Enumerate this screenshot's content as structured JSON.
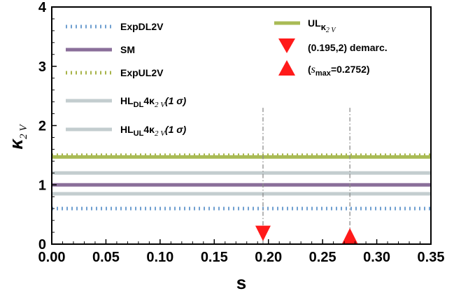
{
  "chart_data": {
    "type": "line",
    "xlabel": "s",
    "ylabel_main": "κ",
    "ylabel_sub": "2 V",
    "xlim": [
      0,
      0.35
    ],
    "ylim": [
      0,
      4
    ],
    "x_ticks": [
      "0.00",
      "0.05",
      "0.10",
      "0.15",
      "0.20",
      "0.25",
      "0.30",
      "0.35"
    ],
    "y_ticks": [
      "0",
      "1",
      "2",
      "3",
      "4"
    ],
    "grid": false,
    "legend_placement": "top",
    "series": [
      {
        "name": "ExpDL2V",
        "y": 0.6,
        "style": "dotted",
        "color": "#6f9fd0"
      },
      {
        "name": "SM",
        "y": 1.0,
        "style": "solid",
        "color": "#8a6f9a"
      },
      {
        "name": "ExpUL2V",
        "y": 1.5,
        "style": "dotted",
        "color": "#a8b44a"
      },
      {
        "name": "HL_DL 4κ_2V (1σ)",
        "y": 0.85,
        "style": "solid",
        "color": "#c3cdcf"
      },
      {
        "name": "HL_UL 4κ_2V (1σ)",
        "y": 1.2,
        "style": "solid",
        "color": "#c3cdcf"
      },
      {
        "name": "UL κ_2V",
        "y": 1.47,
        "style": "solid",
        "color": "#a9bb55"
      }
    ],
    "markers": [
      {
        "name": "(0.195,2) demarc.",
        "x": 0.195,
        "y": 0.17,
        "shape": "triangle-down",
        "guide_top": 2.3,
        "color": "#ff1a1a"
      },
      {
        "name": "(s_max=0.2752)",
        "x": 0.2752,
        "y": 0.13,
        "shape": "triangle-up",
        "guide_top": 2.3,
        "color": "#ff1a1a"
      }
    ],
    "legend": {
      "exp_dl": "ExpDL2V",
      "sm": "SM",
      "exp_ul": "ExpUL2V",
      "hl_dl_base": "HL",
      "hl_dl_sub": "DL",
      "hl_dl_mid": "4κ",
      "hl_dl_sub2": "2 V",
      "hl_dl_tail": "(1 σ)",
      "hl_ul_base": "HL",
      "hl_ul_sub": "UL",
      "hl_ul_mid": "4κ",
      "hl_ul_sub2": "2 V",
      "hl_ul_tail": "(1 σ)",
      "ul_base": "UL",
      "ul_sub": "κ",
      "ul_sub2": "2 V",
      "demarc": "(0.195,2) demarc.",
      "smax_open": "(",
      "smax_s": "s",
      "smax_sub": "max",
      "smax_tail": "=0.2752)"
    },
    "colors": {
      "marker": "#ff1a1a",
      "guide": "#8c8c8c",
      "axis": "#000000"
    }
  }
}
